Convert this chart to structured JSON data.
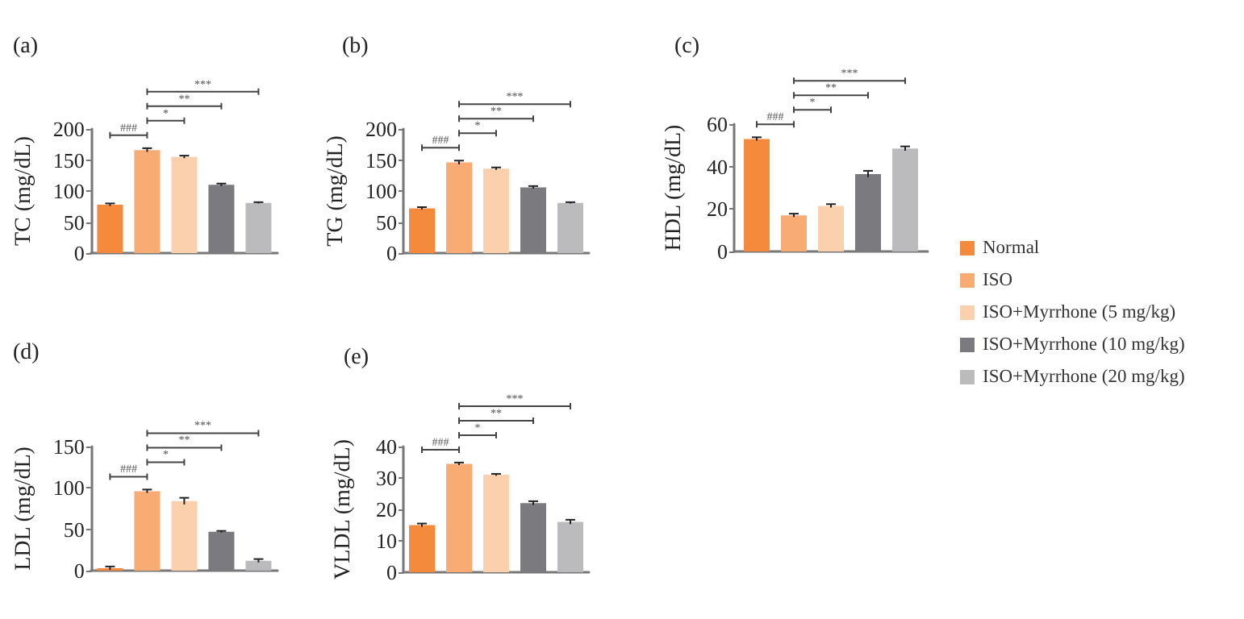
{
  "chart_data": [
    {
      "type": "bar",
      "title": "(a)",
      "ylabel": "TC (mg/dL)",
      "categories": [
        null
      ],
      "ylim": [
        0,
        200
      ],
      "yticks": [
        0,
        50,
        100,
        150,
        200
      ],
      "grid": false,
      "annotations": [
        "###",
        "*",
        "**",
        "***"
      ],
      "series": [
        {
          "color": "#f5893c",
          "values": [
            78
          ],
          "errors": [
            2
          ]
        },
        {
          "color": "#f8ac74",
          "values": [
            166
          ],
          "errors": [
            3
          ]
        },
        {
          "color": "#fbd0ad",
          "values": [
            155
          ],
          "errors": [
            2
          ]
        },
        {
          "color": "#7b7b7f",
          "values": [
            110
          ],
          "errors": [
            2
          ]
        },
        {
          "color": "#bbbbbd",
          "values": [
            81
          ],
          "errors": [
            1
          ]
        }
      ]
    },
    {
      "type": "bar",
      "title": "(b)",
      "ylabel": "TG (mg/dL)",
      "categories": [
        null
      ],
      "ylim": [
        0,
        200
      ],
      "yticks": [
        0,
        50,
        100,
        150,
        200
      ],
      "grid": false,
      "annotations": [
        "###",
        "*",
        "**",
        "***"
      ],
      "series": [
        {
          "color": "#f5893c",
          "values": [
            72
          ],
          "errors": [
            2
          ]
        },
        {
          "color": "#f8ac74",
          "values": [
            146
          ],
          "errors": [
            3
          ]
        },
        {
          "color": "#fbd0ad",
          "values": [
            136
          ],
          "errors": [
            2
          ]
        },
        {
          "color": "#7b7b7f",
          "values": [
            106
          ],
          "errors": [
            2
          ]
        },
        {
          "color": "#bbbbbd",
          "values": [
            81
          ],
          "errors": [
            1
          ]
        }
      ]
    },
    {
      "type": "bar",
      "title": "(c)",
      "ylabel": "HDL (mg/dL)",
      "categories": [
        null
      ],
      "ylim": [
        0,
        60
      ],
      "yticks": [
        0,
        20,
        40,
        60
      ],
      "grid": false,
      "legend": "right",
      "annotations": [
        "###",
        "*",
        "**",
        "***"
      ],
      "series": [
        {
          "name": "Normal",
          "color": "#f5893c",
          "values": [
            53
          ],
          "errors": [
            0.8
          ]
        },
        {
          "name": "ISO",
          "color": "#f8ac74",
          "values": [
            17
          ],
          "errors": [
            0.8
          ]
        },
        {
          "name": "ISO+Myrrhone (5 mg/kg)",
          "color": "#fbd0ad",
          "values": [
            21.5
          ],
          "errors": [
            0.8
          ]
        },
        {
          "name": "ISO+Myrrhone (10 mg/kg)",
          "color": "#7b7b7f",
          "values": [
            36.5
          ],
          "errors": [
            1.5
          ]
        },
        {
          "name": "ISO+Myrrhone (20 mg/kg)",
          "color": "#bbbbbd",
          "values": [
            48.5
          ],
          "errors": [
            1
          ]
        }
      ]
    },
    {
      "type": "bar",
      "title": "(d)",
      "ylabel": "LDL (mg/dL)",
      "categories": [
        null
      ],
      "ylim": [
        0,
        150
      ],
      "yticks": [
        0,
        50,
        100,
        150
      ],
      "grid": false,
      "annotations": [
        "###",
        "*",
        "**",
        "***"
      ],
      "series": [
        {
          "color": "#f5893c",
          "values": [
            3
          ],
          "errors": [
            2
          ]
        },
        {
          "color": "#f8ac74",
          "values": [
            96
          ],
          "errors": [
            2
          ]
        },
        {
          "color": "#fbd0ad",
          "values": [
            84
          ],
          "errors": [
            4
          ]
        },
        {
          "color": "#7b7b7f",
          "values": [
            47
          ],
          "errors": [
            1
          ]
        },
        {
          "color": "#bbbbbd",
          "values": [
            12
          ],
          "errors": [
            2
          ]
        }
      ]
    },
    {
      "type": "bar",
      "title": "(e)",
      "ylabel": "VLDL (mg/dL)",
      "categories": [
        null
      ],
      "ylim": [
        0,
        40
      ],
      "yticks": [
        0,
        10,
        20,
        30,
        40
      ],
      "grid": false,
      "annotations": [
        "###",
        "*",
        "**",
        "***"
      ],
      "series": [
        {
          "color": "#f5893c",
          "values": [
            15
          ],
          "errors": [
            0.5
          ]
        },
        {
          "color": "#f8ac74",
          "values": [
            34.5
          ],
          "errors": [
            0.4
          ]
        },
        {
          "color": "#fbd0ad",
          "values": [
            31
          ],
          "errors": [
            0.3
          ]
        },
        {
          "color": "#7b7b7f",
          "values": [
            22
          ],
          "errors": [
            0.6
          ]
        },
        {
          "color": "#bbbbbd",
          "values": [
            16
          ],
          "errors": [
            0.7
          ]
        }
      ]
    }
  ]
}
